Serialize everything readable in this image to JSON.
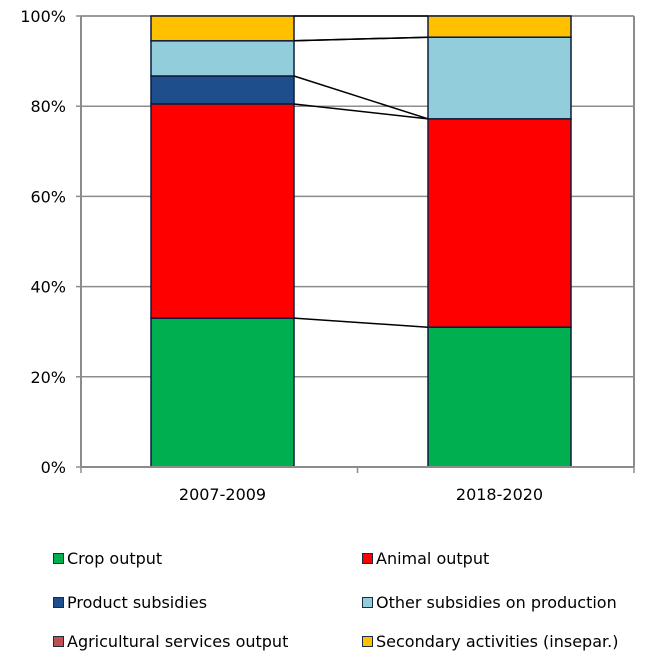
{
  "chart_data": {
    "type": "bar",
    "stacked": true,
    "percent": true,
    "categories": [
      "2007-2009",
      "2018-2020"
    ],
    "series": [
      {
        "name": "Crop output",
        "color": "#00b050",
        "values": [
          33,
          31
        ]
      },
      {
        "name": "Animal output",
        "color": "#ff0000",
        "values": [
          47.5,
          46.2
        ]
      },
      {
        "name": "Product subsidies",
        "color": "#1f4e8c",
        "values": [
          6.2,
          0
        ]
      },
      {
        "name": "Other subsidies on production",
        "color": "#92cddc",
        "values": [
          7.8,
          18.1
        ]
      },
      {
        "name": "Agricultural services output",
        "color": "#c0504d",
        "values": [
          0,
          0
        ]
      },
      {
        "name": "Secondary activities (insepar.)",
        "color": "#ffc000",
        "values": [
          5.5,
          4.7
        ]
      }
    ],
    "ylim": [
      0,
      100
    ],
    "yticks": [
      "0%",
      "20%",
      "40%",
      "60%",
      "80%",
      "100%"
    ],
    "series_lines": true,
    "grid": true,
    "legend_position": "bottom"
  }
}
